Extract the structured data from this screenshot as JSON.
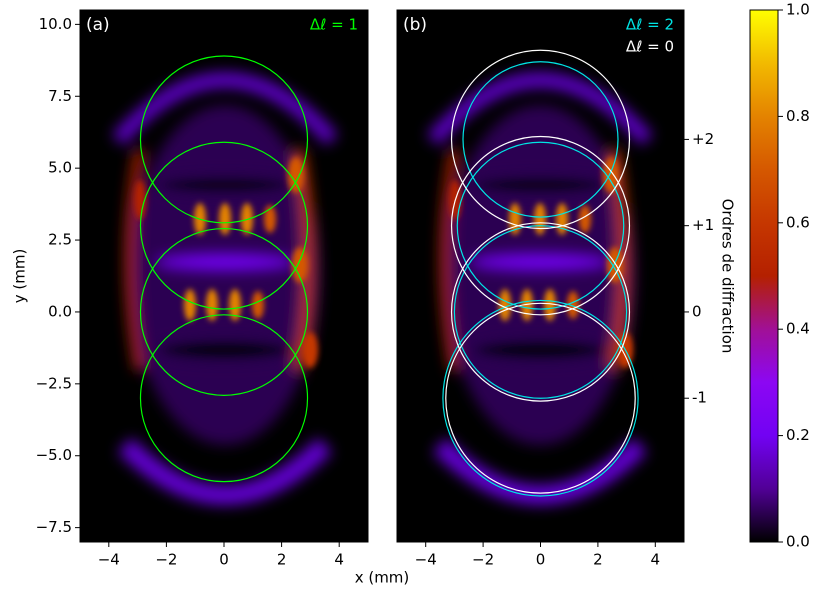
{
  "chart_data": [
    {
      "type": "heatmap",
      "panel_label": "(a)",
      "xlabel": "x (mm)",
      "ylabel": "y (mm)",
      "xlim": [
        -5,
        5
      ],
      "ylim": [
        -8,
        10.5
      ],
      "xticks": [
        {
          "value": -4,
          "label": "−4"
        },
        {
          "value": -2,
          "label": "−2"
        },
        0,
        2,
        4
      ],
      "yticks": [
        {
          "value": 10,
          "label": "10.0"
        },
        7.5,
        {
          "value": 5,
          "label": "5.0"
        },
        2.5,
        {
          "value": 0,
          "label": "0.0"
        },
        {
          "value": -2.5,
          "label": "−2.5"
        },
        {
          "value": -5,
          "label": "−5.0"
        },
        {
          "value": -7.5,
          "label": "−7.5"
        }
      ],
      "series": [
        {
          "name": "Δℓ = 1",
          "color": "#00ff00",
          "x": [
            0,
            0,
            0,
            0
          ],
          "y": [
            6,
            3,
            0,
            -3
          ],
          "r": [
            2.9,
            2.9,
            2.9,
            2.9
          ]
        }
      ]
    },
    {
      "type": "heatmap",
      "panel_label": "(b)",
      "y2label": "Ordres de diffraction",
      "xlim": [
        -5,
        5
      ],
      "ylim": [
        -8,
        10.5
      ],
      "y2lim": [
        -8,
        10.5
      ],
      "xticks": [
        {
          "value": -4,
          "label": "−4"
        },
        {
          "value": -2,
          "label": "−2"
        },
        0,
        2,
        4
      ],
      "y2ticks": [
        {
          "value": 6,
          "label": "+2"
        },
        {
          "value": 3,
          "label": "+1"
        },
        0,
        {
          "value": -3,
          "label": "-1"
        }
      ],
      "series": [
        {
          "name": "Δℓ = 2",
          "color": "#00e5e5",
          "x": [
            0,
            0,
            0,
            0
          ],
          "y": [
            6,
            3,
            0,
            -3
          ],
          "r": [
            2.7,
            2.9,
            3.0,
            3.4
          ]
        },
        {
          "name": "Δℓ = 0",
          "color": "#ffffff",
          "x": [
            0,
            0,
            0,
            0
          ],
          "y": [
            6,
            3,
            0,
            -3
          ],
          "r": [
            3.1,
            3.1,
            3.1,
            3.3
          ]
        }
      ]
    },
    {
      "type": "colorbar",
      "ylim": [
        0,
        1
      ],
      "yticks": [
        {
          "value": 0,
          "label": "0.0"
        },
        0.2,
        0.4,
        0.6,
        0.8,
        {
          "value": 1,
          "label": "1.0"
        }
      ],
      "colors": [
        "#000000",
        "#510096",
        "#7202f3",
        "#8c07f3",
        "#a11096",
        "#b42000",
        "#c63700",
        "#d55800",
        "#e48300",
        "#f2ba00",
        "#ffff00"
      ]
    }
  ]
}
